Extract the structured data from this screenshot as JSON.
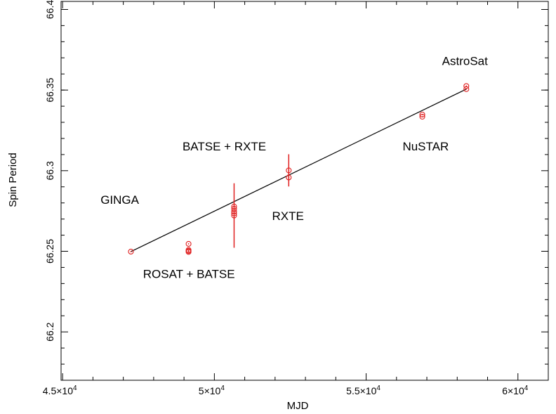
{
  "chart_data": {
    "type": "scatter",
    "xlabel": "MJD",
    "ylabel": "Spin Period",
    "xlim": [
      44950,
      61000
    ],
    "ylim": [
      66.17,
      66.405
    ],
    "x_ticks": [
      {
        "value": 45000,
        "label": "4.5×10",
        "exp": "4"
      },
      {
        "value": 50000,
        "label": "5×10",
        "exp": "4"
      },
      {
        "value": 55000,
        "label": "5.5×10",
        "exp": "4"
      },
      {
        "value": 60000,
        "label": "6×10",
        "exp": "4"
      }
    ],
    "y_ticks": [
      {
        "value": 66.2,
        "label": "66.2"
      },
      {
        "value": 66.25,
        "label": "66.25"
      },
      {
        "value": 66.3,
        "label": "66.3"
      },
      {
        "value": 66.35,
        "label": "66.35"
      },
      {
        "value": 66.4,
        "label": "66.4"
      }
    ],
    "series": [
      {
        "marker_color": "#e02020",
        "points": [
          {
            "x": 47250,
            "y": 66.2498,
            "yerr": 0
          },
          {
            "x": 49150,
            "y": 66.2546,
            "yerr": 0
          },
          {
            "x": 49150,
            "y": 66.2508,
            "yerr": 0
          },
          {
            "x": 49150,
            "y": 66.2502,
            "yerr": 0
          },
          {
            "x": 49150,
            "y": 66.2496,
            "yerr": 0
          },
          {
            "x": 50650,
            "y": 66.2778,
            "yerr": 0
          },
          {
            "x": 50650,
            "y": 66.2764,
            "yerr": 0
          },
          {
            "x": 50650,
            "y": 66.2748,
            "yerr": 0
          },
          {
            "x": 50650,
            "y": 66.2735,
            "yerr": 0
          },
          {
            "x": 50650,
            "y": 66.2722,
            "yerr": 0.02
          },
          {
            "x": 52450,
            "y": 66.3002,
            "yerr": 0.01
          },
          {
            "x": 52450,
            "y": 66.2958,
            "yerr": 0
          },
          {
            "x": 56850,
            "y": 66.3348,
            "yerr": 0
          },
          {
            "x": 56850,
            "y": 66.3335,
            "yerr": 0
          },
          {
            "x": 58300,
            "y": 66.3525,
            "yerr": 0
          },
          {
            "x": 58300,
            "y": 66.3506,
            "yerr": 0
          }
        ]
      }
    ],
    "fit_line": {
      "x": [
        47250,
        58300
      ],
      "y": [
        66.2498,
        66.3506
      ],
      "color": "#000000"
    },
    "annotations": [
      {
        "text": "GINGA",
        "x": 46250,
        "y": 66.2795
      },
      {
        "text": "ROSAT + BATSE",
        "x": 47650,
        "y": 66.2335
      },
      {
        "text": "BATSE + RXTE",
        "x": 48950,
        "y": 66.3125
      },
      {
        "text": "RXTE",
        "x": 51900,
        "y": 66.2695
      },
      {
        "text": "NuSTAR",
        "x": 56200,
        "y": 66.3125
      },
      {
        "text": "AstroSat",
        "x": 57500,
        "y": 66.3655
      }
    ],
    "grid": false,
    "legend": "none"
  }
}
